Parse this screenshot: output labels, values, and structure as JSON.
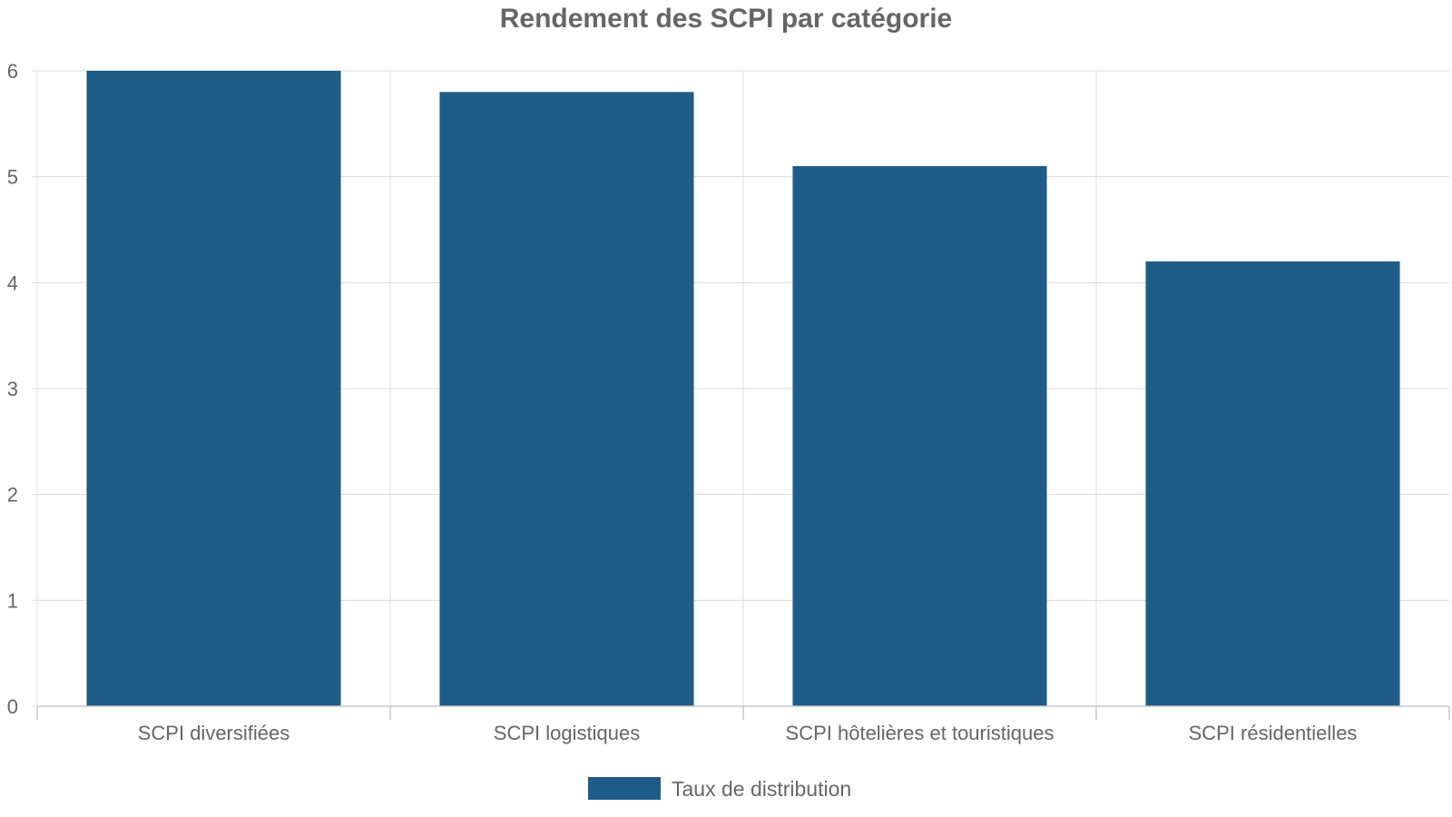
{
  "chart_data": {
    "type": "bar",
    "title": "Rendement des SCPI par catégorie",
    "categories": [
      "SCPI diversifiées",
      "SCPI logistiques",
      "SCPI hôtelières et touristiques",
      "SCPI résidentielles"
    ],
    "series": [
      {
        "name": "Taux de distribution",
        "values": [
          6.0,
          5.8,
          5.1,
          4.2
        ],
        "color": "#1f5c87"
      }
    ],
    "ylim": [
      0,
      6
    ],
    "yticks": [
      0,
      1,
      2,
      3,
      4,
      5,
      6
    ],
    "xlabel": "",
    "ylabel": "",
    "grid": true,
    "legend": "bottom-center"
  }
}
